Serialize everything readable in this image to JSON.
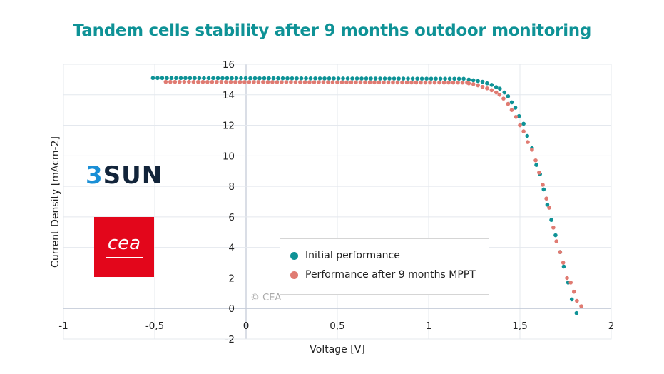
{
  "chart_data": {
    "type": "scatter",
    "title": "Tandem cells stability after 9 months outdoor monitoring",
    "xlabel": "Voltage [V]",
    "ylabel": "Current Density [mAcm-2]",
    "xlim": [
      -1,
      2
    ],
    "ylim": [
      -2,
      16
    ],
    "x_ticks": [
      -1,
      -0.5,
      0,
      0.5,
      1,
      1.5,
      2
    ],
    "x_tick_labels": [
      "-1",
      "-0,5",
      "0",
      "0,5",
      "1",
      "1,5",
      "2"
    ],
    "y_ticks": [
      -2,
      0,
      2,
      4,
      6,
      8,
      10,
      12,
      14,
      16
    ],
    "y_tick_labels": [
      "-2",
      "0",
      "2",
      "4",
      "6",
      "8",
      "10",
      "12",
      "14",
      "16"
    ],
    "grid": true,
    "legend_position": "bottom-center",
    "annotation": "© CEA",
    "series": [
      {
        "name": "Initial performance",
        "color": "#0e9296",
        "flat": {
          "v_start": -0.51,
          "v_end": 1.2,
          "step": 0.0254,
          "j_start": 15.1,
          "j_end": 15.05
        },
        "points": [
          [
            1.22,
            15.0
          ],
          [
            1.245,
            14.95
          ],
          [
            1.27,
            14.9
          ],
          [
            1.295,
            14.85
          ],
          [
            1.32,
            14.75
          ],
          [
            1.345,
            14.65
          ],
          [
            1.37,
            14.5
          ],
          [
            1.39,
            14.4
          ],
          [
            1.415,
            14.15
          ],
          [
            1.435,
            13.9
          ],
          [
            1.455,
            13.5
          ],
          [
            1.475,
            13.15
          ],
          [
            1.495,
            12.6
          ],
          [
            1.52,
            12.1
          ],
          [
            1.54,
            11.3
          ],
          [
            1.566,
            10.5
          ],
          [
            1.59,
            9.4
          ],
          [
            1.61,
            8.8
          ],
          [
            1.63,
            7.8
          ],
          [
            1.65,
            6.8
          ],
          [
            1.672,
            5.8
          ],
          [
            1.695,
            4.8
          ],
          [
            1.72,
            3.7
          ],
          [
            1.74,
            2.75
          ],
          [
            1.764,
            1.7
          ],
          [
            1.784,
            0.6
          ],
          [
            1.81,
            -0.3
          ]
        ]
      },
      {
        "name": "Performance after 9 months MPPT",
        "color": "#e07b72",
        "flat": {
          "v_start": -0.44,
          "v_end": 1.2,
          "step": 0.0254,
          "j_start": 14.85,
          "j_end": 14.8
        },
        "points": [
          [
            1.22,
            14.75
          ],
          [
            1.245,
            14.7
          ],
          [
            1.27,
            14.62
          ],
          [
            1.295,
            14.52
          ],
          [
            1.32,
            14.42
          ],
          [
            1.345,
            14.3
          ],
          [
            1.37,
            14.15
          ],
          [
            1.388,
            14.0
          ],
          [
            1.41,
            13.75
          ],
          [
            1.435,
            13.4
          ],
          [
            1.455,
            13.0
          ],
          [
            1.478,
            12.55
          ],
          [
            1.5,
            12.0
          ],
          [
            1.52,
            11.6
          ],
          [
            1.543,
            10.9
          ],
          [
            1.566,
            10.4
          ],
          [
            1.586,
            9.7
          ],
          [
            1.605,
            8.9
          ],
          [
            1.625,
            8.1
          ],
          [
            1.645,
            7.2
          ],
          [
            1.66,
            6.6
          ],
          [
            1.683,
            5.3
          ],
          [
            1.7,
            4.4
          ],
          [
            1.72,
            3.7
          ],
          [
            1.737,
            3.0
          ],
          [
            1.758,
            2.0
          ],
          [
            1.778,
            1.7
          ],
          [
            1.796,
            1.1
          ],
          [
            1.812,
            0.5
          ],
          [
            1.836,
            0.15
          ]
        ]
      }
    ]
  },
  "logos": {
    "threesun_prefix": "3",
    "threesun_suffix": "SUN",
    "cea": "cea"
  }
}
